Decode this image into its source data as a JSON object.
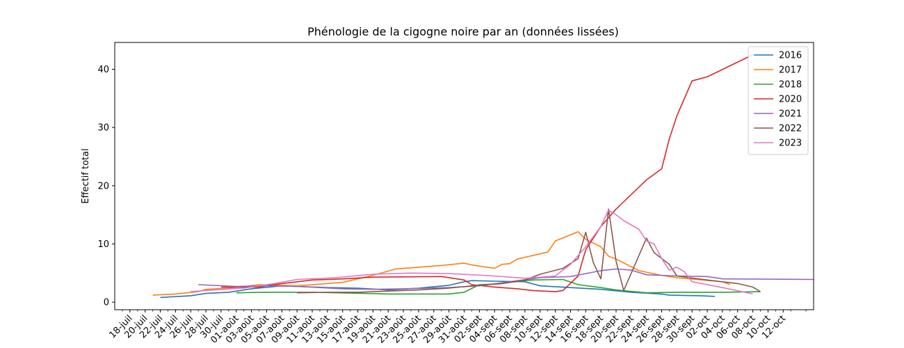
{
  "chart_data": {
    "type": "line",
    "title": "Phénologie de la cigogne noire par an (données lissées)",
    "xlabel": "",
    "ylabel": "Effectif total",
    "x_unit": "day of year (Jul 18 = first tick)",
    "xlim": [
      "2000-07-16",
      "2000-10-16"
    ],
    "ylim": [
      -1.3,
      44.6
    ],
    "y_ticks": [
      0,
      10,
      20,
      30,
      40
    ],
    "x_tick_labels": [
      "18-juil",
      "20-juil",
      "22-juil",
      "24-juil",
      "26-juil",
      "28-juil",
      "30-juil",
      "01-août",
      "03-août",
      "05-août",
      "07-août",
      "09-août",
      "11-août",
      "13-août",
      "15-août",
      "17-août",
      "19-août",
      "21-août",
      "23-août",
      "25-août",
      "27-août",
      "29-août",
      "31-août",
      "02-sept",
      "04-sept",
      "06-sept",
      "08-sept",
      "10-sept",
      "12-sept",
      "14-sept",
      "16-sept",
      "18-sept",
      "20-sept",
      "22-sept",
      "24-sept",
      "26-sept",
      "28-sept",
      "30-sept",
      "02-oct",
      "04-oct",
      "06-oct",
      "08-oct",
      "10-oct",
      "12-oct"
    ],
    "x_tick_dates": [
      "2000-07-18",
      "2000-07-20",
      "2000-07-22",
      "2000-07-24",
      "2000-07-26",
      "2000-07-28",
      "2000-07-30",
      "2000-08-01",
      "2000-08-03",
      "2000-08-05",
      "2000-08-07",
      "2000-08-09",
      "2000-08-11",
      "2000-08-13",
      "2000-08-15",
      "2000-08-17",
      "2000-08-19",
      "2000-08-21",
      "2000-08-23",
      "2000-08-25",
      "2000-08-27",
      "2000-08-29",
      "2000-08-31",
      "2000-09-02",
      "2000-09-04",
      "2000-09-06",
      "2000-09-08",
      "2000-09-10",
      "2000-09-12",
      "2000-09-14",
      "2000-09-16",
      "2000-09-18",
      "2000-09-20",
      "2000-09-22",
      "2000-09-24",
      "2000-09-26",
      "2000-09-28",
      "2000-09-30",
      "2000-10-02",
      "2000-10-04",
      "2000-10-06",
      "2000-10-08",
      "2000-10-10",
      "2000-10-12"
    ],
    "legend": "upper right",
    "grid": false,
    "series": [
      {
        "name": "2016",
        "color": "#1f77b4",
        "points": [
          [
            "2000-07-22",
            0.8
          ],
          [
            "2000-07-26",
            1.1
          ],
          [
            "2000-07-28",
            1.5
          ],
          [
            "2000-07-31",
            1.7
          ],
          [
            "2000-08-03",
            2.3
          ],
          [
            "2000-08-07",
            2.8
          ],
          [
            "2000-08-13",
            2.5
          ],
          [
            "2000-08-17",
            2.4
          ],
          [
            "2000-08-21",
            2.1
          ],
          [
            "2000-08-25",
            2.4
          ],
          [
            "2000-08-29",
            2.9
          ],
          [
            "2000-08-31",
            3.5
          ],
          [
            "2000-09-01",
            3.7
          ],
          [
            "2000-09-04",
            3.6
          ],
          [
            "2000-09-08",
            3.5
          ],
          [
            "2000-09-10",
            2.8
          ],
          [
            "2000-09-14",
            2.5
          ],
          [
            "2000-09-18",
            2.2
          ],
          [
            "2000-09-22",
            1.7
          ],
          [
            "2000-09-26",
            1.4
          ],
          [
            "2000-09-27",
            1.2
          ],
          [
            "2000-10-01",
            1.1
          ],
          [
            "2000-10-03",
            1.0
          ]
        ]
      },
      {
        "name": "2017",
        "color": "#ff7f0e",
        "points": [
          [
            "2000-07-21",
            1.2
          ],
          [
            "2000-07-24",
            1.4
          ],
          [
            "2000-07-27",
            1.8
          ],
          [
            "2000-07-28",
            2.2
          ],
          [
            "2000-07-31",
            2.4
          ],
          [
            "2000-08-04",
            3.0
          ],
          [
            "2000-08-09",
            2.8
          ],
          [
            "2000-08-15",
            3.4
          ],
          [
            "2000-08-17",
            4.0
          ],
          [
            "2000-08-19",
            4.6
          ],
          [
            "2000-08-22",
            5.7
          ],
          [
            "2000-08-28",
            6.3
          ],
          [
            "2000-08-31",
            6.7
          ],
          [
            "2000-09-01",
            6.4
          ],
          [
            "2000-09-04",
            5.8
          ],
          [
            "2000-09-05",
            6.5
          ],
          [
            "2000-09-06",
            6.6
          ],
          [
            "2000-09-07",
            7.4
          ],
          [
            "2000-09-09",
            8.0
          ],
          [
            "2000-09-11",
            8.6
          ],
          [
            "2000-09-12",
            10.5
          ],
          [
            "2000-09-15",
            12.1
          ],
          [
            "2000-09-16",
            10.8
          ],
          [
            "2000-09-18",
            9.5
          ],
          [
            "2000-09-19",
            7.9
          ],
          [
            "2000-09-20",
            7.4
          ],
          [
            "2000-09-23",
            5.4
          ],
          [
            "2000-09-26",
            4.6
          ],
          [
            "2000-09-28",
            4.2
          ],
          [
            "2000-10-04",
            3.5
          ],
          [
            "2000-10-05",
            3.0
          ]
        ]
      },
      {
        "name": "2018",
        "color": "#2ca02c",
        "points": [
          [
            "2000-08-01",
            1.6
          ],
          [
            "2000-08-05",
            1.7
          ],
          [
            "2000-08-11",
            1.7
          ],
          [
            "2000-08-18",
            1.5
          ],
          [
            "2000-08-21",
            1.4
          ],
          [
            "2000-08-29",
            1.4
          ],
          [
            "2000-08-31",
            1.7
          ],
          [
            "2000-09-02",
            3.0
          ],
          [
            "2000-09-04",
            3.1
          ],
          [
            "2000-09-06",
            3.4
          ],
          [
            "2000-09-09",
            3.8
          ],
          [
            "2000-09-13",
            3.9
          ],
          [
            "2000-09-15",
            3.0
          ],
          [
            "2000-09-18",
            2.5
          ],
          [
            "2000-09-20",
            2.1
          ],
          [
            "2000-09-24",
            1.6
          ],
          [
            "2000-09-28",
            1.7
          ],
          [
            "2000-10-04",
            1.7
          ],
          [
            "2000-10-09",
            1.8
          ]
        ]
      },
      {
        "name": "2020",
        "color": "#d62728",
        "points": [
          [
            "2000-07-30",
            2.6
          ],
          [
            "2000-08-04",
            2.6
          ],
          [
            "2000-08-07",
            3.2
          ],
          [
            "2000-08-11",
            3.8
          ],
          [
            "2000-08-15",
            4.0
          ],
          [
            "2000-08-19",
            4.3
          ],
          [
            "2000-08-28",
            4.4
          ],
          [
            "2000-08-31",
            3.8
          ],
          [
            "2000-09-01",
            3.0
          ],
          [
            "2000-09-04",
            2.6
          ],
          [
            "2000-09-07",
            2.3
          ],
          [
            "2000-09-09",
            2.0
          ],
          [
            "2000-09-12",
            1.8
          ],
          [
            "2000-09-13",
            2.0
          ],
          [
            "2000-09-15",
            4.5
          ],
          [
            "2000-09-16",
            9.0
          ],
          [
            "2000-09-18",
            13.0
          ],
          [
            "2000-09-20",
            16.0
          ],
          [
            "2000-09-24",
            21.0
          ],
          [
            "2000-09-26",
            22.9
          ],
          [
            "2000-09-27",
            28.0
          ],
          [
            "2000-09-28",
            32.0
          ],
          [
            "2000-09-30",
            38.0
          ],
          [
            "2000-10-02",
            38.7
          ],
          [
            "2000-10-08",
            42.5
          ]
        ]
      },
      {
        "name": "2021",
        "color": "#9467bd",
        "points": [
          [
            "2000-07-27",
            3.0
          ],
          [
            "2000-08-01",
            2.7
          ],
          [
            "2000-08-05",
            2.8
          ],
          [
            "2000-08-09",
            2.7
          ],
          [
            "2000-08-15",
            2.3
          ],
          [
            "2000-08-19",
            2.2
          ],
          [
            "2000-08-23",
            2.3
          ],
          [
            "2000-08-29",
            2.5
          ],
          [
            "2000-09-02",
            2.8
          ],
          [
            "2000-09-06",
            3.5
          ],
          [
            "2000-09-10",
            4.2
          ],
          [
            "2000-09-14",
            4.4
          ],
          [
            "2000-09-18",
            5.4
          ],
          [
            "2000-09-20",
            5.7
          ],
          [
            "2000-09-22",
            5.5
          ],
          [
            "2000-09-24",
            4.7
          ],
          [
            "2000-09-28",
            4.5
          ],
          [
            "2000-10-02",
            4.4
          ],
          [
            "2000-10-04",
            4.0
          ],
          [
            "2000-10-16",
            3.9
          ]
        ]
      },
      {
        "name": "2022",
        "color": "#8c564b",
        "points": [
          [
            "2000-08-09",
            1.6
          ],
          [
            "2000-08-13",
            1.7
          ],
          [
            "2000-08-17",
            1.7
          ],
          [
            "2000-08-21",
            1.9
          ],
          [
            "2000-08-25",
            2.1
          ],
          [
            "2000-08-29",
            2.4
          ],
          [
            "2000-09-01",
            2.8
          ],
          [
            "2000-09-05",
            3.2
          ],
          [
            "2000-09-08",
            3.8
          ],
          [
            "2000-09-10",
            4.8
          ],
          [
            "2000-09-13",
            5.8
          ],
          [
            "2000-09-15",
            7.5
          ],
          [
            "2000-09-16",
            12.0
          ],
          [
            "2000-09-17",
            6.8
          ],
          [
            "2000-09-18",
            4.0
          ],
          [
            "2000-09-19",
            16.0
          ],
          [
            "2000-09-20",
            7.0
          ],
          [
            "2000-09-21",
            2.0
          ],
          [
            "2000-09-24",
            11.0
          ],
          [
            "2000-09-25",
            8.5
          ],
          [
            "2000-09-27",
            6.5
          ],
          [
            "2000-09-28",
            4.5
          ],
          [
            "2000-10-02",
            3.8
          ],
          [
            "2000-10-06",
            3.2
          ],
          [
            "2000-10-08",
            2.6
          ],
          [
            "2000-10-09",
            1.8
          ]
        ]
      },
      {
        "name": "2023",
        "color": "#e377c2",
        "points": [
          [
            "2000-07-26",
            1.8
          ],
          [
            "2000-07-29",
            2.1
          ],
          [
            "2000-08-02",
            2.4
          ],
          [
            "2000-08-06",
            3.2
          ],
          [
            "2000-08-09",
            3.9
          ],
          [
            "2000-08-14",
            4.2
          ],
          [
            "2000-08-19",
            4.8
          ],
          [
            "2000-08-24",
            5.0
          ],
          [
            "2000-08-29",
            4.9
          ],
          [
            "2000-09-04",
            4.5
          ],
          [
            "2000-09-08",
            4.1
          ],
          [
            "2000-09-12",
            4.5
          ],
          [
            "2000-09-14",
            6.5
          ],
          [
            "2000-09-16",
            9.5
          ],
          [
            "2000-09-18",
            13.0
          ],
          [
            "2000-09-19",
            15.8
          ],
          [
            "2000-09-20",
            15.0
          ],
          [
            "2000-09-21",
            14.0
          ],
          [
            "2000-09-23",
            12.5
          ],
          [
            "2000-09-24",
            10.5
          ],
          [
            "2000-09-25",
            10.0
          ],
          [
            "2000-09-26",
            7.5
          ],
          [
            "2000-09-27",
            5.5
          ],
          [
            "2000-09-28",
            6.0
          ],
          [
            "2000-09-29",
            5.2
          ],
          [
            "2000-09-30",
            3.5
          ],
          [
            "2000-10-04",
            2.5
          ],
          [
            "2000-10-08",
            1.4
          ]
        ]
      }
    ]
  }
}
